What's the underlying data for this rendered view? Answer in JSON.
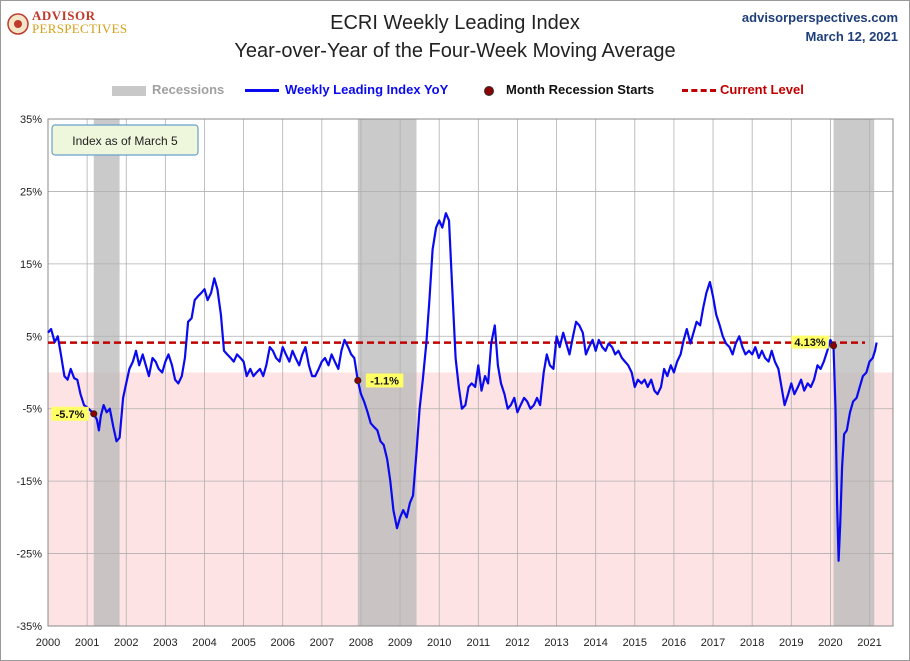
{
  "header": {
    "logo_line1": "ADVISOR",
    "logo_line2": "PERSPECTIVES",
    "title": "ECRI Weekly Leading Index",
    "subtitle": "Year-over-Year of the Four-Week Moving Average",
    "site": "advisorperspectives.com",
    "date": "March 12, 2021"
  },
  "colors": {
    "line": "#0a0af0",
    "current_level": "#c00000",
    "recession": "#b8b8b8",
    "negative_zone": "#fde3e3",
    "marker": "#8b0000",
    "label_bg": "#ffff66"
  },
  "chart_data": {
    "type": "line",
    "title": "ECRI Weekly Leading Index",
    "subtitle": "Year-over-Year of the Four-Week Moving Average",
    "ylim": [
      -35,
      35
    ],
    "y_ticks": [
      "35%",
      "25%",
      "15%",
      "5%",
      "-5%",
      "-15%",
      "-25%",
      "-35%"
    ],
    "x_ticks": [
      "2000",
      "2001",
      "2002",
      "2003",
      "2004",
      "2005",
      "2006",
      "2007",
      "2008",
      "2009",
      "2010",
      "2011",
      "2012",
      "2013",
      "2014",
      "2015",
      "2016",
      "2017",
      "2018",
      "2019",
      "2020",
      "2021"
    ],
    "xlim": [
      2000.0,
      2021.6
    ],
    "grid": true,
    "legend": {
      "recessions": "Recessions",
      "series": "Weekly Leading Index YoY",
      "marker": "Month Recession Starts",
      "current": "Current Level"
    },
    "note": "Index as of March 5",
    "recessions": [
      [
        2001.17,
        2001.83
      ],
      [
        2007.92,
        2009.42
      ],
      [
        2020.08,
        2021.12
      ]
    ],
    "current_level": 4.13,
    "current_label": "4.13%",
    "recession_starts": [
      {
        "x": 2001.17,
        "y": -5.7,
        "label": "-5.7%"
      },
      {
        "x": 2007.92,
        "y": -1.1,
        "label": "-1.1%"
      },
      {
        "x": 2020.08,
        "y": 3.7,
        "label": ""
      }
    ],
    "series": [
      {
        "name": "Weekly Leading Index YoY",
        "points": [
          [
            2000.0,
            5.5
          ],
          [
            2000.08,
            6.0
          ],
          [
            2000.17,
            4.2
          ],
          [
            2000.25,
            5.0
          ],
          [
            2000.33,
            2.5
          ],
          [
            2000.42,
            -0.5
          ],
          [
            2000.5,
            -1.0
          ],
          [
            2000.58,
            0.5
          ],
          [
            2000.67,
            -0.8
          ],
          [
            2000.75,
            -1.0
          ],
          [
            2000.83,
            -3.0
          ],
          [
            2000.92,
            -4.5
          ],
          [
            2001.0,
            -4.8
          ],
          [
            2001.08,
            -5.2
          ],
          [
            2001.17,
            -5.7
          ],
          [
            2001.25,
            -6.5
          ],
          [
            2001.3,
            -8.0
          ],
          [
            2001.35,
            -6.0
          ],
          [
            2001.42,
            -4.5
          ],
          [
            2001.5,
            -5.5
          ],
          [
            2001.58,
            -5.0
          ],
          [
            2001.67,
            -7.5
          ],
          [
            2001.75,
            -9.5
          ],
          [
            2001.83,
            -9.0
          ],
          [
            2001.92,
            -3.5
          ],
          [
            2002.0,
            -1.5
          ],
          [
            2002.08,
            0.5
          ],
          [
            2002.17,
            1.5
          ],
          [
            2002.25,
            3.0
          ],
          [
            2002.33,
            1.0
          ],
          [
            2002.42,
            2.5
          ],
          [
            2002.5,
            1.0
          ],
          [
            2002.58,
            -0.5
          ],
          [
            2002.67,
            2.0
          ],
          [
            2002.75,
            1.5
          ],
          [
            2002.83,
            0.5
          ],
          [
            2002.92,
            0.0
          ],
          [
            2003.0,
            1.5
          ],
          [
            2003.08,
            2.5
          ],
          [
            2003.17,
            1.0
          ],
          [
            2003.25,
            -1.0
          ],
          [
            2003.33,
            -1.5
          ],
          [
            2003.42,
            -0.5
          ],
          [
            2003.5,
            2.0
          ],
          [
            2003.58,
            7.0
          ],
          [
            2003.67,
            7.5
          ],
          [
            2003.75,
            10.0
          ],
          [
            2003.83,
            10.5
          ],
          [
            2003.92,
            11.0
          ],
          [
            2004.0,
            11.5
          ],
          [
            2004.08,
            10.0
          ],
          [
            2004.17,
            11.0
          ],
          [
            2004.25,
            13.0
          ],
          [
            2004.33,
            11.5
          ],
          [
            2004.42,
            8.0
          ],
          [
            2004.5,
            3.0
          ],
          [
            2004.58,
            2.5
          ],
          [
            2004.67,
            2.0
          ],
          [
            2004.75,
            1.5
          ],
          [
            2004.83,
            2.5
          ],
          [
            2004.92,
            2.0
          ],
          [
            2005.0,
            1.5
          ],
          [
            2005.08,
            -0.5
          ],
          [
            2005.17,
            0.5
          ],
          [
            2005.25,
            -0.5
          ],
          [
            2005.33,
            0.0
          ],
          [
            2005.42,
            0.5
          ],
          [
            2005.5,
            -0.5
          ],
          [
            2005.58,
            1.0
          ],
          [
            2005.67,
            3.5
          ],
          [
            2005.75,
            3.0
          ],
          [
            2005.83,
            2.0
          ],
          [
            2005.92,
            1.5
          ],
          [
            2006.0,
            3.5
          ],
          [
            2006.08,
            2.5
          ],
          [
            2006.17,
            1.5
          ],
          [
            2006.25,
            3.0
          ],
          [
            2006.33,
            2.0
          ],
          [
            2006.42,
            1.0
          ],
          [
            2006.5,
            2.5
          ],
          [
            2006.58,
            3.5
          ],
          [
            2006.67,
            1.0
          ],
          [
            2006.75,
            -0.5
          ],
          [
            2006.83,
            -0.5
          ],
          [
            2006.92,
            0.5
          ],
          [
            2007.0,
            1.5
          ],
          [
            2007.08,
            2.0
          ],
          [
            2007.17,
            1.0
          ],
          [
            2007.25,
            2.5
          ],
          [
            2007.33,
            1.5
          ],
          [
            2007.42,
            0.5
          ],
          [
            2007.5,
            3.0
          ],
          [
            2007.58,
            4.5
          ],
          [
            2007.67,
            3.5
          ],
          [
            2007.75,
            2.5
          ],
          [
            2007.83,
            2.0
          ],
          [
            2007.92,
            -1.1
          ],
          [
            2008.0,
            -3.0
          ],
          [
            2008.08,
            -4.0
          ],
          [
            2008.17,
            -5.5
          ],
          [
            2008.25,
            -7.0
          ],
          [
            2008.33,
            -7.5
          ],
          [
            2008.42,
            -8.0
          ],
          [
            2008.5,
            -9.5
          ],
          [
            2008.58,
            -10.0
          ],
          [
            2008.67,
            -12.0
          ],
          [
            2008.75,
            -15.0
          ],
          [
            2008.83,
            -19.0
          ],
          [
            2008.92,
            -21.5
          ],
          [
            2009.0,
            -20.0
          ],
          [
            2009.08,
            -19.0
          ],
          [
            2009.17,
            -20.0
          ],
          [
            2009.25,
            -18.0
          ],
          [
            2009.33,
            -17.0
          ],
          [
            2009.42,
            -11.0
          ],
          [
            2009.5,
            -5.0
          ],
          [
            2009.58,
            -1.0
          ],
          [
            2009.67,
            4.0
          ],
          [
            2009.75,
            10.0
          ],
          [
            2009.83,
            17.0
          ],
          [
            2009.92,
            20.0
          ],
          [
            2010.0,
            21.0
          ],
          [
            2010.08,
            20.0
          ],
          [
            2010.17,
            22.0
          ],
          [
            2010.25,
            21.0
          ],
          [
            2010.33,
            12.0
          ],
          [
            2010.42,
            2.0
          ],
          [
            2010.5,
            -2.0
          ],
          [
            2010.58,
            -5.0
          ],
          [
            2010.67,
            -4.5
          ],
          [
            2010.75,
            -2.0
          ],
          [
            2010.83,
            -1.5
          ],
          [
            2010.92,
            -2.0
          ],
          [
            2011.0,
            1.0
          ],
          [
            2011.08,
            -2.5
          ],
          [
            2011.17,
            -0.5
          ],
          [
            2011.25,
            -1.5
          ],
          [
            2011.33,
            4.0
          ],
          [
            2011.42,
            6.5
          ],
          [
            2011.5,
            1.0
          ],
          [
            2011.58,
            -1.5
          ],
          [
            2011.67,
            -3.0
          ],
          [
            2011.75,
            -5.0
          ],
          [
            2011.83,
            -4.5
          ],
          [
            2011.92,
            -3.5
          ],
          [
            2012.0,
            -5.5
          ],
          [
            2012.08,
            -4.5
          ],
          [
            2012.17,
            -3.5
          ],
          [
            2012.25,
            -4.0
          ],
          [
            2012.33,
            -5.0
          ],
          [
            2012.42,
            -4.5
          ],
          [
            2012.5,
            -3.5
          ],
          [
            2012.58,
            -4.5
          ],
          [
            2012.67,
            0.0
          ],
          [
            2012.75,
            2.5
          ],
          [
            2012.83,
            1.0
          ],
          [
            2012.92,
            0.5
          ],
          [
            2013.0,
            5.0
          ],
          [
            2013.08,
            3.5
          ],
          [
            2013.17,
            5.5
          ],
          [
            2013.25,
            4.0
          ],
          [
            2013.33,
            2.5
          ],
          [
            2013.42,
            5.0
          ],
          [
            2013.5,
            7.0
          ],
          [
            2013.58,
            6.5
          ],
          [
            2013.67,
            5.5
          ],
          [
            2013.75,
            2.5
          ],
          [
            2013.83,
            3.5
          ],
          [
            2013.92,
            4.5
          ],
          [
            2014.0,
            3.0
          ],
          [
            2014.08,
            4.5
          ],
          [
            2014.17,
            3.5
          ],
          [
            2014.25,
            3.0
          ],
          [
            2014.33,
            4.0
          ],
          [
            2014.42,
            3.5
          ],
          [
            2014.5,
            2.5
          ],
          [
            2014.58,
            3.0
          ],
          [
            2014.67,
            2.0
          ],
          [
            2014.75,
            1.5
          ],
          [
            2014.83,
            1.0
          ],
          [
            2014.92,
            0.0
          ],
          [
            2015.0,
            -2.0
          ],
          [
            2015.08,
            -1.0
          ],
          [
            2015.17,
            -1.5
          ],
          [
            2015.25,
            -1.0
          ],
          [
            2015.33,
            -2.0
          ],
          [
            2015.42,
            -1.0
          ],
          [
            2015.5,
            -2.5
          ],
          [
            2015.58,
            -3.0
          ],
          [
            2015.67,
            -2.0
          ],
          [
            2015.75,
            0.5
          ],
          [
            2015.83,
            -0.5
          ],
          [
            2015.92,
            1.0
          ],
          [
            2016.0,
            0.0
          ],
          [
            2016.08,
            1.5
          ],
          [
            2016.17,
            2.5
          ],
          [
            2016.25,
            4.5
          ],
          [
            2016.33,
            6.0
          ],
          [
            2016.42,
            4.0
          ],
          [
            2016.5,
            5.5
          ],
          [
            2016.58,
            7.0
          ],
          [
            2016.67,
            6.5
          ],
          [
            2016.75,
            9.0
          ],
          [
            2016.83,
            11.0
          ],
          [
            2016.92,
            12.5
          ],
          [
            2017.0,
            10.5
          ],
          [
            2017.08,
            8.0
          ],
          [
            2017.17,
            6.5
          ],
          [
            2017.25,
            5.0
          ],
          [
            2017.33,
            4.0
          ],
          [
            2017.42,
            3.5
          ],
          [
            2017.5,
            2.5
          ],
          [
            2017.58,
            4.0
          ],
          [
            2017.67,
            5.0
          ],
          [
            2017.75,
            3.5
          ],
          [
            2017.83,
            2.5
          ],
          [
            2017.92,
            3.0
          ],
          [
            2018.0,
            2.5
          ],
          [
            2018.08,
            3.5
          ],
          [
            2018.17,
            2.0
          ],
          [
            2018.25,
            3.0
          ],
          [
            2018.33,
            2.0
          ],
          [
            2018.42,
            1.5
          ],
          [
            2018.5,
            3.0
          ],
          [
            2018.58,
            1.5
          ],
          [
            2018.67,
            0.5
          ],
          [
            2018.75,
            -2.0
          ],
          [
            2018.83,
            -4.5
          ],
          [
            2018.92,
            -3.0
          ],
          [
            2019.0,
            -1.5
          ],
          [
            2019.08,
            -3.0
          ],
          [
            2019.17,
            -2.0
          ],
          [
            2019.25,
            -1.0
          ],
          [
            2019.33,
            -2.5
          ],
          [
            2019.42,
            -1.5
          ],
          [
            2019.5,
            -2.0
          ],
          [
            2019.58,
            -1.0
          ],
          [
            2019.67,
            1.0
          ],
          [
            2019.75,
            0.5
          ],
          [
            2019.83,
            1.5
          ],
          [
            2019.92,
            3.0
          ],
          [
            2020.0,
            4.5
          ],
          [
            2020.08,
            3.7
          ],
          [
            2020.13,
            -5.0
          ],
          [
            2020.17,
            -18.0
          ],
          [
            2020.21,
            -26.0
          ],
          [
            2020.25,
            -21.0
          ],
          [
            2020.3,
            -13.0
          ],
          [
            2020.35,
            -8.5
          ],
          [
            2020.42,
            -8.0
          ],
          [
            2020.5,
            -5.5
          ],
          [
            2020.58,
            -4.0
          ],
          [
            2020.67,
            -3.5
          ],
          [
            2020.75,
            -2.0
          ],
          [
            2020.83,
            -0.5
          ],
          [
            2020.92,
            0.0
          ],
          [
            2021.0,
            1.5
          ],
          [
            2021.08,
            2.0
          ],
          [
            2021.14,
            3.0
          ],
          [
            2021.18,
            4.13
          ]
        ]
      }
    ]
  }
}
